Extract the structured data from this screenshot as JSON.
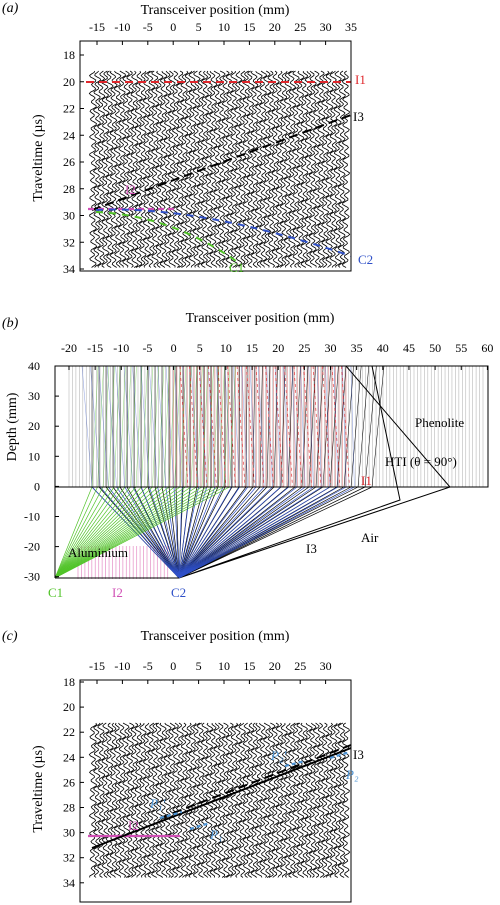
{
  "panels": {
    "a": {
      "label_paren": "(a)",
      "xlabel": "Transceiver position (mm)",
      "ylabel": "Traveltime (µs)",
      "xticks": [
        "-15",
        "-10",
        "-5",
        "0",
        "5",
        "10",
        "15",
        "20",
        "25",
        "30",
        "35"
      ],
      "yticks": [
        "18",
        "20",
        "22",
        "24",
        "26",
        "28",
        "30",
        "32",
        "34"
      ],
      "annotations": {
        "I1": "I1",
        "I3": "I3",
        "I2": "I2",
        "C1": "C1",
        "C2": "C2"
      }
    },
    "b": {
      "label_paren": "(b)",
      "xlabel": "Transceiver position (mm)",
      "ylabel": "Depth (mm)",
      "xticks": [
        "-20",
        "-15",
        "-10",
        "-5",
        "0",
        "5",
        "10",
        "15",
        "20",
        "25",
        "30",
        "35",
        "40",
        "45",
        "50",
        "55",
        "60"
      ],
      "yticks": [
        "40",
        "30",
        "20",
        "10",
        "0",
        "-10",
        "-20",
        "-30"
      ],
      "annotations": {
        "phenolite": "Phenolite",
        "hti": "HTI (θ = 90°)",
        "I1": "I1",
        "I3": "I3",
        "air": "Air",
        "aluminium": "Aluminium",
        "C1": "C1",
        "I2": "I2",
        "C2": "C2"
      }
    },
    "c": {
      "label_paren": "(c)",
      "xlabel": "Transceiver position (mm)",
      "ylabel": "Traveltime (µs)",
      "xticks": [
        "-15",
        "-10",
        "-5",
        "0",
        "5",
        "10",
        "15",
        "20",
        "25",
        "30"
      ],
      "yticks": [
        "18",
        "20",
        "22",
        "24",
        "26",
        "28",
        "30",
        "32",
        "34"
      ],
      "annotations": {
        "P2p": "P₂'",
        "I3": "I3",
        "P2": "P₂",
        "P1p": "P₁'",
        "I2": "I2",
        "P1": "P₁"
      }
    }
  },
  "colors": {
    "axis": "#000000",
    "red": "#e0262b",
    "blue": "#2f50c8",
    "green": "#52c42a",
    "magenta": "#d04fb5",
    "lightblue": "#4e95d6",
    "pink": "#e89ccd",
    "gray": "#b8b8b8"
  }
}
